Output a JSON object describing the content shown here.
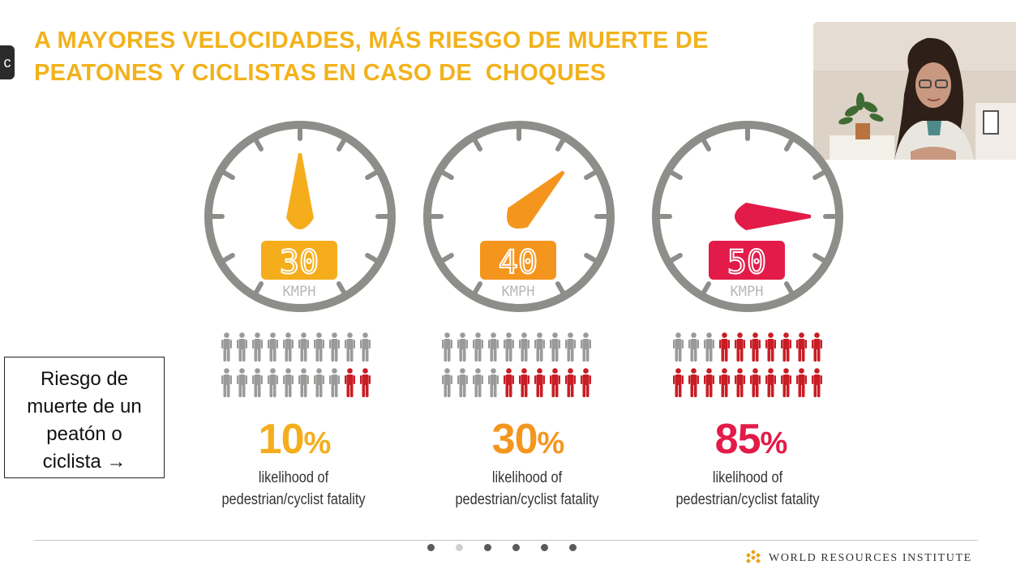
{
  "side_tab": {
    "glyph": "c"
  },
  "slide": {
    "title_lines": [
      "A MAYORES VELOCIDADES, MÁS RIESGO DE MUERTE DE",
      "PEATONES Y CICLISTAS EN CASO DE  CHOQUES"
    ],
    "callout_lines": [
      "Riesgo de",
      "muerte de un",
      "peatón o",
      "ciclista →"
    ],
    "gauges": [
      {
        "speed": "30",
        "unit": "KMPH",
        "percent": "10",
        "percent_sign": "%",
        "caption_line1": "likelihood of",
        "caption_line2": "pedestrian/cyclist fatality",
        "color": "#f5ad1b",
        "needle_angle_deg": 0,
        "fatal_count": 2,
        "total_count": 20
      },
      {
        "speed": "40",
        "unit": "KMPH",
        "percent": "30",
        "percent_sign": "%",
        "caption_line1": "likelihood of",
        "caption_line2": "pedestrian/cyclist fatality",
        "color": "#f4961e",
        "needle_angle_deg": 45,
        "fatal_count": 6,
        "total_count": 20
      },
      {
        "speed": "50",
        "unit": "KMPH",
        "percent": "85",
        "percent_sign": "%",
        "caption_line1": "likelihood of",
        "caption_line2": "pedestrian/cyclist fatality",
        "color": "#e21b48",
        "needle_angle_deg": 90,
        "fatal_count": 17,
        "total_count": 20
      }
    ],
    "colors": {
      "title": "#f2b21b",
      "dial_gray": "#8d8d8a",
      "person_gray": "#9a9a98",
      "person_red": "#c81d25"
    },
    "pagination": {
      "count": 6,
      "active_index": 1
    },
    "footer": {
      "organization": "WORLD RESOURCES INSTITUTE"
    }
  },
  "video": {
    "kind": "speaker webcam thumbnail"
  }
}
